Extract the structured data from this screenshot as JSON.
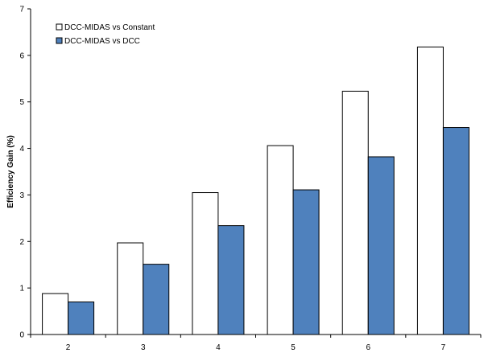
{
  "chart_data": {
    "type": "bar",
    "categories": [
      "2",
      "3",
      "4",
      "5",
      "6",
      "7"
    ],
    "series": [
      {
        "name": "DCC-MIDAS vs Constant",
        "values": [
          0.88,
          1.97,
          3.05,
          4.06,
          5.23,
          6.18
        ],
        "color": "#ffffff"
      },
      {
        "name": "DCC-MIDAS vs DCC",
        "values": [
          0.7,
          1.51,
          2.34,
          3.11,
          3.82,
          4.45
        ],
        "color": "#4f81bd"
      }
    ],
    "title": "",
    "xlabel": "",
    "ylabel": "Efficiency Gain (%)",
    "ylim": [
      0,
      7
    ],
    "yticks": [
      "0",
      "1",
      "2",
      "3",
      "4",
      "5",
      "6",
      "7"
    ],
    "grid": false,
    "legend": "top-left"
  }
}
